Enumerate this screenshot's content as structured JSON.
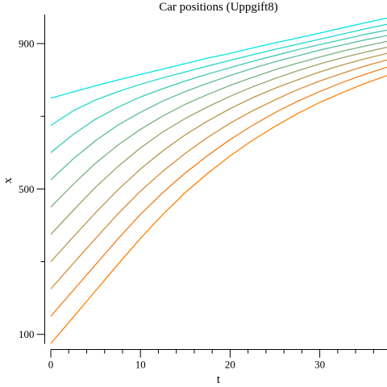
{
  "chart_data": {
    "type": "line",
    "title": "Car positions (Uppgift8)",
    "xlabel": "t",
    "ylabel": "x",
    "xlim": [
      0,
      37.5
    ],
    "ylim": [
      75,
      980
    ],
    "x_ticks": [
      0,
      10,
      20,
      30
    ],
    "y_ticks": [
      100,
      500,
      900
    ],
    "x_minor_ticks": [
      2,
      4,
      6,
      8,
      12,
      14,
      16,
      18,
      22,
      24,
      26,
      28,
      32,
      34,
      36
    ],
    "y_minor_ticks": [
      300,
      700
    ],
    "grid": false,
    "legend": "none",
    "x": [
      0,
      2.5,
      5,
      7.5,
      10,
      12.5,
      15,
      17.5,
      20,
      22.5,
      25,
      27.5,
      30,
      32.5,
      35,
      37.5
    ],
    "series": [
      {
        "color": "#00e5e5",
        "values": [
          750,
          767,
          784,
          800,
          815,
          830,
          845,
          860,
          873,
          888,
          902,
          915,
          929,
          943,
          957,
          970
        ]
      },
      {
        "color": "#1fd8cc",
        "values": [
          675,
          715,
          745,
          768,
          788,
          806,
          822,
          838,
          854,
          869,
          884,
          898,
          912,
          926,
          940,
          953
        ]
      },
      {
        "color": "#3dcbb3",
        "values": [
          600,
          650,
          692,
          725,
          753,
          776,
          797,
          816,
          834,
          851,
          867,
          883,
          897,
          911,
          925,
          937
        ]
      },
      {
        "color": "#5cbe9a",
        "values": [
          525,
          583,
          633,
          676,
          711,
          742,
          768,
          791,
          812,
          832,
          850,
          866,
          882,
          896,
          910,
          922
        ]
      },
      {
        "color": "#7ab180",
        "values": [
          450,
          513,
          571,
          621,
          664,
          701,
          733,
          760,
          785,
          807,
          828,
          846,
          863,
          879,
          893,
          906
        ]
      },
      {
        "color": "#99a467",
        "values": [
          375,
          441,
          505,
          562,
          613,
          657,
          694,
          726,
          755,
          781,
          804,
          825,
          844,
          861,
          876,
          890
        ]
      },
      {
        "color": "#b7984e",
        "values": [
          300,
          368,
          435,
          498,
          555,
          605,
          649,
          687,
          721,
          751,
          777,
          800,
          822,
          841,
          858,
          873
        ]
      },
      {
        "color": "#d68b35",
        "values": [
          225,
          295,
          364,
          432,
          494,
          549,
          598,
          642,
          681,
          715,
          745,
          773,
          797,
          818,
          838,
          855
        ]
      },
      {
        "color": "#f47e1c",
        "values": [
          150,
          221,
          292,
          363,
          430,
          490,
          544,
          592,
          636,
          675,
          710,
          741,
          768,
          793,
          815,
          835
        ]
      },
      {
        "color": "#ff8000",
        "values": [
          75,
          147,
          220,
          293,
          364,
          430,
          490,
          543,
          591,
          634,
          672,
          707,
          738,
          765,
          790,
          812
        ]
      }
    ]
  }
}
